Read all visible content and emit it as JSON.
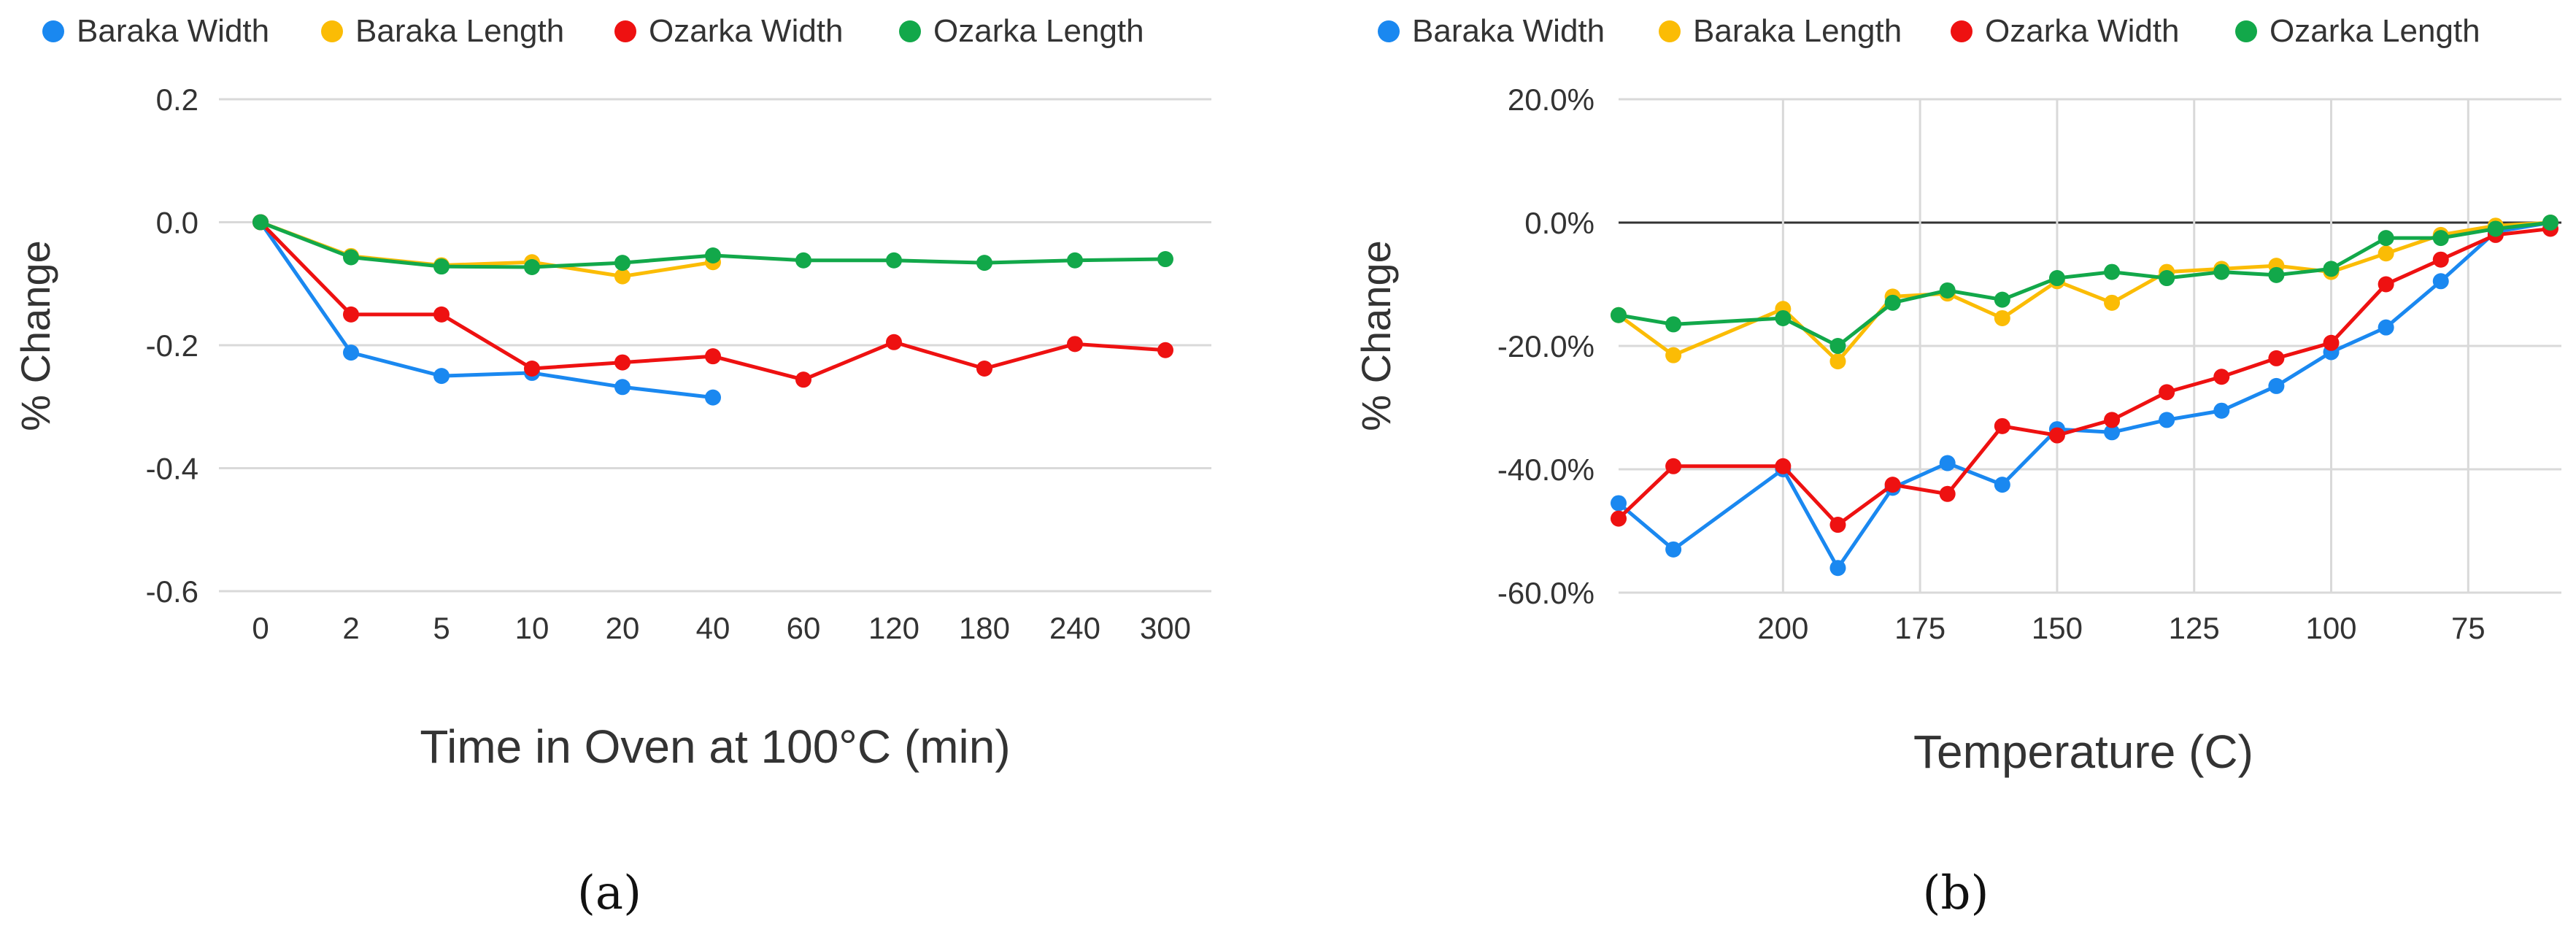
{
  "colors": {
    "baraka_width": "#1a88f0",
    "baraka_length": "#fbbc05",
    "ozarka_width": "#ee1111",
    "ozarka_length": "#12a84a",
    "grid": "#d9d9d9",
    "zero_line": "#333333",
    "text": "#333333"
  },
  "chart_data": [
    {
      "type": "line",
      "panel_label": "(a)",
      "title": "",
      "xlabel": "Time in Oven at 100°C (min)",
      "ylabel": "% Change",
      "categories": [
        "0",
        "2",
        "5",
        "10",
        "20",
        "40",
        "60",
        "120",
        "180",
        "240",
        "300"
      ],
      "ylim": [
        -0.6,
        0.2
      ],
      "yticks": [
        0.2,
        0.0,
        -0.2,
        -0.4,
        -0.6
      ],
      "ytick_labels": [
        "0.2",
        "0.0",
        "-0.2",
        "-0.4",
        "-0.6"
      ],
      "grid": "horizontal",
      "legend_position": "top",
      "series": [
        {
          "name": "Baraka Width",
          "color_key": "baraka_width",
          "values": [
            0.0,
            -0.212,
            -0.25,
            -0.245,
            -0.268,
            -0.285,
            null,
            null,
            null,
            null,
            null
          ]
        },
        {
          "name": "Baraka Length",
          "color_key": "baraka_length",
          "values": [
            0.0,
            -0.055,
            -0.07,
            -0.065,
            -0.088,
            -0.065,
            null,
            null,
            null,
            null,
            null
          ]
        },
        {
          "name": "Ozarka Width",
          "color_key": "ozarka_width",
          "values": [
            0.0,
            -0.15,
            -0.15,
            -0.238,
            -0.228,
            -0.218,
            -0.256,
            -0.195,
            -0.238,
            -0.198,
            -0.208
          ]
        },
        {
          "name": "Ozarka Length",
          "color_key": "ozarka_length",
          "values": [
            0.0,
            -0.057,
            -0.072,
            -0.073,
            -0.066,
            -0.054,
            -0.062,
            -0.062,
            -0.066,
            -0.062,
            -0.06
          ]
        }
      ]
    },
    {
      "type": "line",
      "panel_label": "(b)",
      "title": "",
      "xlabel": "Temperature (C)",
      "ylabel": "% Change",
      "x": [
        230,
        220,
        200,
        190,
        180,
        170,
        160,
        150,
        140,
        130,
        120,
        110,
        100,
        90,
        80,
        70,
        60
      ],
      "xlim": [
        230,
        58
      ],
      "xticks": [
        200,
        175,
        150,
        125,
        100,
        75
      ],
      "xtick_labels": [
        "200",
        "175",
        "150",
        "125",
        "100",
        "75"
      ],
      "ylim": [
        -60,
        20
      ],
      "yticks": [
        20,
        0,
        -20,
        -40,
        -60
      ],
      "ytick_labels": [
        "20.0%",
        "0.0%",
        "-20.0%",
        "-40.0%",
        "-60.0%"
      ],
      "grid": "both",
      "zero_line": true,
      "legend_position": "top",
      "series": [
        {
          "name": "Baraka Width",
          "color_key": "baraka_width",
          "values": [
            -45.5,
            -53,
            -40,
            -56,
            -43,
            -39,
            -42.5,
            -33.5,
            -34,
            -32,
            -30.5,
            -26.5,
            -21,
            -17,
            -9.5,
            -1.5,
            0
          ]
        },
        {
          "name": "Baraka Length",
          "color_key": "baraka_length",
          "values": [
            -15,
            -21.5,
            -14,
            -22.5,
            -12,
            -11.5,
            -15.5,
            -9.5,
            -13,
            -8,
            -7.5,
            -7,
            -8,
            -5,
            -2,
            -0.5,
            0
          ]
        },
        {
          "name": "Ozarka Width",
          "color_key": "ozarka_width",
          "values": [
            -48,
            -39.5,
            -39.5,
            -49,
            -42.5,
            -44,
            -33,
            -34.5,
            -32,
            -27.5,
            -25,
            -22,
            -19.5,
            -10,
            -6,
            -2,
            -1
          ]
        },
        {
          "name": "Ozarka Length",
          "color_key": "ozarka_length",
          "values": [
            -15,
            -16.5,
            -15.5,
            -20,
            -13,
            -11,
            -12.5,
            -9,
            -8,
            -9,
            -8,
            -8.5,
            -7.5,
            -2.5,
            -2.5,
            -1,
            0
          ]
        }
      ]
    }
  ]
}
